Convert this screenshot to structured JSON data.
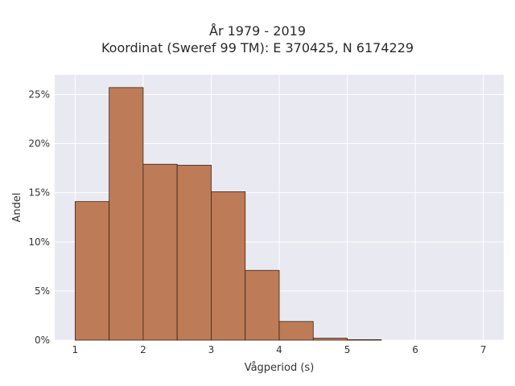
{
  "chart_data": {
    "type": "bar",
    "title": "År 1979 - 2019",
    "subtitle": "Koordinat (Sweref 99 TM): E 370425, N 6174229",
    "xlabel": "Vågperiod (s)",
    "ylabel": "Andel",
    "bin_edges": [
      1,
      1.5,
      2,
      2.5,
      3,
      3.5,
      4,
      4.5,
      5,
      5.5
    ],
    "values": [
      14.1,
      25.7,
      17.9,
      17.8,
      15.1,
      7.1,
      1.9,
      0.2,
      0.05
    ],
    "xlim": [
      0.7,
      7.3
    ],
    "ylim": [
      0,
      27
    ],
    "x_ticks": [
      1,
      2,
      3,
      4,
      5,
      6,
      7
    ],
    "x_tick_labels": [
      "1",
      "2",
      "3",
      "4",
      "5",
      "6",
      "7"
    ],
    "y_ticks": [
      0,
      5,
      10,
      15,
      20,
      25
    ],
    "y_tick_labels": [
      "0%",
      "5%",
      "10%",
      "15%",
      "20%",
      "25%"
    ],
    "bar_color": "#bd7b57",
    "bar_edge_color": "#3d2416",
    "plot_bg": "#e9e9f1",
    "grid": true
  }
}
